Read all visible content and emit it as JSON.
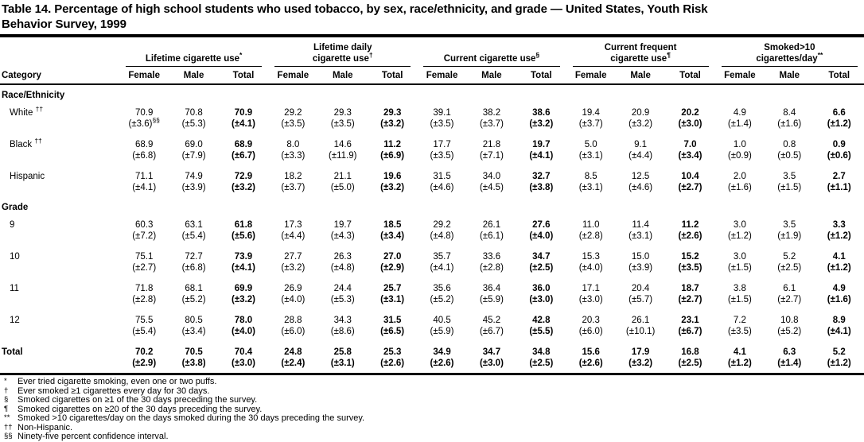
{
  "page": {
    "title_lines": [
      "Table 14. Percentage of high school students who used tobacco, by sex, race/ethnicity, and grade — United States, Youth Risk",
      "Behavior Survey, 1999"
    ]
  },
  "table": {
    "category_header": "Category",
    "sub_columns": [
      "Female",
      "Male",
      "Total"
    ],
    "column_groups": [
      {
        "lines": [
          "Lifetime cigarette use"
        ],
        "sup": "*"
      },
      {
        "lines": [
          "Lifetime daily",
          "cigarette use"
        ],
        "sup": "†"
      },
      {
        "lines": [
          "Current cigarette use"
        ],
        "sup": "§"
      },
      {
        "lines": [
          "Current frequent",
          "cigarette use"
        ],
        "sup": "¶"
      },
      {
        "lines": [
          "Smoked>10",
          "cigarettes/day"
        ],
        "sup": "**"
      }
    ],
    "sections": [
      {
        "header": "Race/Ethnicity",
        "rows": [
          {
            "label": "White",
            "label_sup": "††",
            "values": [
              "70.9",
              "70.8",
              "70.9",
              "29.2",
              "29.3",
              "29.3",
              "39.1",
              "38.2",
              "38.6",
              "19.4",
              "20.9",
              "20.2",
              "4.9",
              "8.4",
              "6.6"
            ],
            "ci": [
              "(±3.6)",
              "(±5.3)",
              "(±4.1)",
              "(±3.5)",
              "(±3.5)",
              "(±3.2)",
              "(±3.5)",
              "(±3.7)",
              "(±3.2)",
              "(±3.7)",
              "(±3.2)",
              "(±3.0)",
              "(±1.4)",
              "(±1.6)",
              "(±1.2)"
            ],
            "ci_first_sup": "§§"
          },
          {
            "label": "Black",
            "label_sup": "††",
            "values": [
              "68.9",
              "69.0",
              "68.9",
              "8.0",
              "14.6",
              "11.2",
              "17.7",
              "21.8",
              "19.7",
              "5.0",
              "9.1",
              "7.0",
              "1.0",
              "0.8",
              "0.9"
            ],
            "ci": [
              "(±6.8)",
              "(±7.9)",
              "(±6.7)",
              "(±3.3)",
              "(±11.9)",
              "(±6.9)",
              "(±3.5)",
              "(±7.1)",
              "(±4.1)",
              "(±3.1)",
              "(±4.4)",
              "(±3.4)",
              "(±0.9)",
              "(±0.5)",
              "(±0.6)"
            ]
          },
          {
            "label": "Hispanic",
            "values": [
              "71.1",
              "74.9",
              "72.9",
              "18.2",
              "21.1",
              "19.6",
              "31.5",
              "34.0",
              "32.7",
              "8.5",
              "12.5",
              "10.4",
              "2.0",
              "3.5",
              "2.7"
            ],
            "ci": [
              "(±4.1)",
              "(±3.9)",
              "(±3.2)",
              "(±3.7)",
              "(±5.0)",
              "(±3.2)",
              "(±4.6)",
              "(±4.5)",
              "(±3.8)",
              "(±3.1)",
              "(±4.6)",
              "(±2.7)",
              "(±1.6)",
              "(±1.5)",
              "(±1.1)"
            ]
          }
        ]
      },
      {
        "header": "Grade",
        "rows": [
          {
            "label": "9",
            "values": [
              "60.3",
              "63.1",
              "61.8",
              "17.3",
              "19.7",
              "18.5",
              "29.2",
              "26.1",
              "27.6",
              "11.0",
              "11.4",
              "11.2",
              "3.0",
              "3.5",
              "3.3"
            ],
            "ci": [
              "(±7.2)",
              "(±5.4)",
              "(±5.6)",
              "(±4.4)",
              "(±4.3)",
              "(±3.4)",
              "(±4.8)",
              "(±6.1)",
              "(±4.0)",
              "(±2.8)",
              "(±3.1)",
              "(±2.6)",
              "(±1.2)",
              "(±1.9)",
              "(±1.2)"
            ]
          },
          {
            "label": "10",
            "values": [
              "75.1",
              "72.7",
              "73.9",
              "27.7",
              "26.3",
              "27.0",
              "35.7",
              "33.6",
              "34.7",
              "15.3",
              "15.0",
              "15.2",
              "3.0",
              "5.2",
              "4.1"
            ],
            "ci": [
              "(±2.7)",
              "(±6.8)",
              "(±4.1)",
              "(±3.2)",
              "(±4.8)",
              "(±2.9)",
              "(±4.1)",
              "(±2.8)",
              "(±2.5)",
              "(±4.0)",
              "(±3.9)",
              "(±3.5)",
              "(±1.5)",
              "(±2.5)",
              "(±1.2)"
            ]
          },
          {
            "label": "11",
            "values": [
              "71.8",
              "68.1",
              "69.9",
              "26.9",
              "24.4",
              "25.7",
              "35.6",
              "36.4",
              "36.0",
              "17.1",
              "20.4",
              "18.7",
              "3.8",
              "6.1",
              "4.9"
            ],
            "ci": [
              "(±2.8)",
              "(±5.2)",
              "(±3.2)",
              "(±4.0)",
              "(±5.3)",
              "(±3.1)",
              "(±5.2)",
              "(±5.9)",
              "(±3.0)",
              "(±3.0)",
              "(±5.7)",
              "(±2.7)",
              "(±1.5)",
              "(±2.7)",
              "(±1.6)"
            ]
          },
          {
            "label": "12",
            "values": [
              "75.5",
              "80.5",
              "78.0",
              "28.8",
              "34.3",
              "31.5",
              "40.5",
              "45.2",
              "42.8",
              "20.3",
              "26.1",
              "23.1",
              "7.2",
              "10.8",
              "8.9"
            ],
            "ci": [
              "(±5.4)",
              "(±3.4)",
              "(±4.0)",
              "(±6.0)",
              "(±8.6)",
              "(±6.5)",
              "(±5.9)",
              "(±6.7)",
              "(±5.5)",
              "(±6.0)",
              "(±10.1)",
              "(±6.7)",
              "(±3.5)",
              "(±5.2)",
              "(±4.1)"
            ]
          }
        ]
      }
    ],
    "total_row": {
      "label": "Total",
      "values": [
        "70.2",
        "70.5",
        "70.4",
        "24.8",
        "25.8",
        "25.3",
        "34.9",
        "34.7",
        "34.8",
        "15.6",
        "17.9",
        "16.8",
        "4.1",
        "6.3",
        "5.2"
      ],
      "ci": [
        "(±2.9)",
        "(±3.8)",
        "(±3.0)",
        "(±2.4)",
        "(±3.1)",
        "(±2.6)",
        "(±2.6)",
        "(±3.0)",
        "(±2.5)",
        "(±2.6)",
        "(±3.2)",
        "(±2.5)",
        "(±1.2)",
        "(±1.4)",
        "(±1.2)"
      ]
    }
  },
  "footnotes": [
    {
      "symbol": "*",
      "text": "Ever tried cigarette smoking, even one or two puffs."
    },
    {
      "symbol": "†",
      "text": "Ever smoked ≥1 cigarettes every day for 30 days."
    },
    {
      "symbol": "§",
      "text": "Smoked cigarettes on ≥1 of the 30 days preceding the survey."
    },
    {
      "symbol": "¶",
      "text": "Smoked cigarettes on ≥20 of the 30 days preceding the survey."
    },
    {
      "symbol": "**",
      "text": "Smoked >10 cigarettes/day on the days smoked during the 30 days preceding the survey."
    },
    {
      "symbol": "††",
      "text": "Non-Hispanic."
    },
    {
      "symbol": "§§",
      "text": "Ninety-five percent confidence interval."
    }
  ]
}
